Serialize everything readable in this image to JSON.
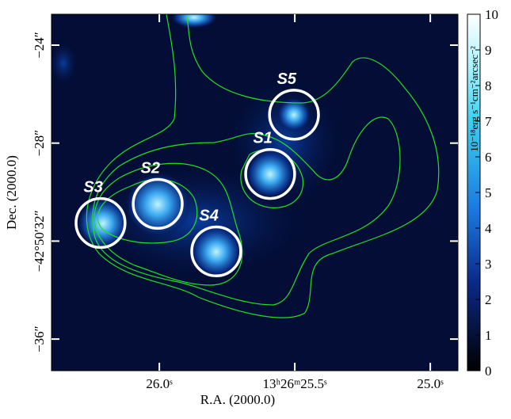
{
  "chart_data": {
    "type": "image",
    "x_label": "R.A. (2000.0)",
    "y_label": "Dec. (2000.0)",
    "xlim": [
      26.398,
      24.898
    ],
    "ylim": [
      -37.29,
      -22.74
    ],
    "xticks": [
      {
        "value": 26.0,
        "label": "26.0ˢ"
      },
      {
        "value": 25.5,
        "label": "13ʰ26ᵐ25.5ˢ"
      },
      {
        "value": 25.0,
        "label": "25.0ˢ"
      }
    ],
    "yticks": [
      {
        "value": -24,
        "label": "−24″"
      },
      {
        "value": -28,
        "label": "−28″"
      },
      {
        "value": -32,
        "label": "−42°50′32″"
      },
      {
        "value": -36,
        "label": "−36″"
      }
    ],
    "colorbar": {
      "label": "10⁻¹⁸erg s⁻¹cm⁻²arcsec⁻²",
      "lim": [
        0,
        10
      ],
      "ticks": [
        0,
        1,
        2,
        3,
        4,
        5,
        6,
        7,
        8,
        9,
        10
      ]
    },
    "sources": [
      {
        "name": "S1",
        "x": 25.591,
        "y": -29.26,
        "r": 1.0
      },
      {
        "name": "S2",
        "x": 26.006,
        "y": -30.48,
        "r": 1.0
      },
      {
        "name": "S3",
        "x": 26.217,
        "y": -31.26,
        "r": 1.0
      },
      {
        "name": "S4",
        "x": 25.79,
        "y": -32.42,
        "r": 1.0
      },
      {
        "name": "S5",
        "x": 25.503,
        "y": -26.84,
        "r": 1.0
      }
    ]
  }
}
